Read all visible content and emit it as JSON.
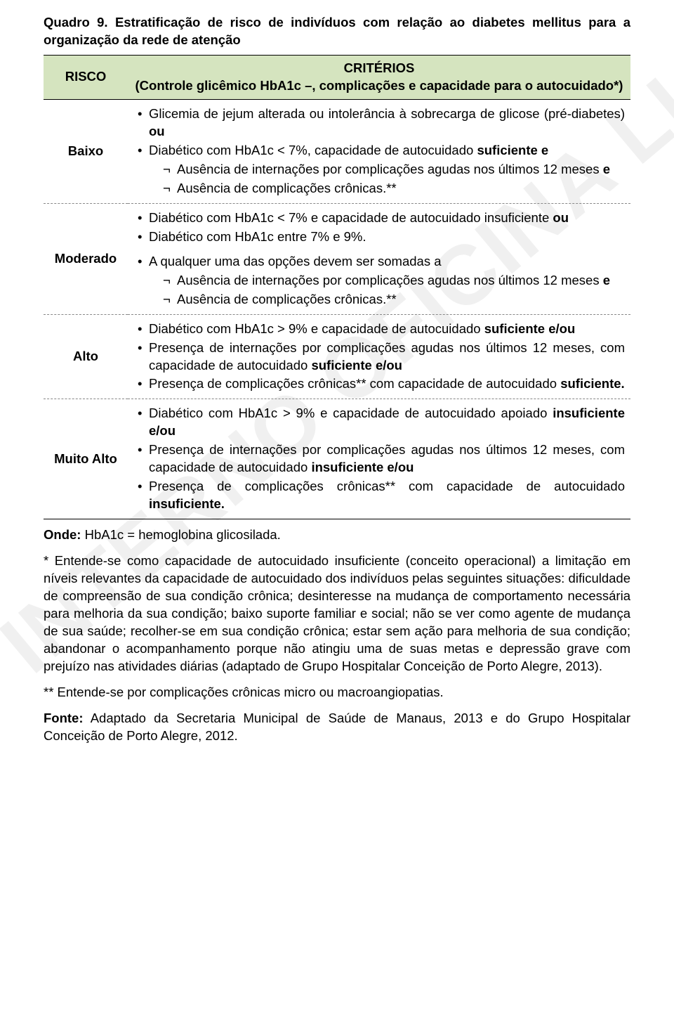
{
  "title_label": "Quadro 9.",
  "title_text": "Estratificação de risco de indivíduos com relação ao diabetes mellitus para a organização da rede de atenção",
  "header": {
    "risk": "RISCO",
    "criteria_line1": "CRITÉRIOS",
    "criteria_line2": "(Controle glicêmico HbA1c –, complicações e capacidade para o autocuidado*)"
  },
  "rows": {
    "baixo": {
      "label": "Baixo",
      "b1a": "Glicemia de jejum alterada ou intolerância à sobrecarga de glicose (pré-diabetes) ",
      "b1b": "ou",
      "b2a": "Diabético com HbA1c < 7%, capacidade de autocuidado ",
      "b2b": "suficiente e",
      "s1a": "Ausência de internações por complicações agudas nos últimos 12 meses ",
      "s1b": "e",
      "s2": "Ausência de complicações crônicas.**"
    },
    "moderado": {
      "label": "Moderado",
      "b1a": "Diabético com HbA1c < 7% e capacidade de autocuidado insuficiente ",
      "b1b": "ou",
      "b2": "Diabético com HbA1c entre 7% e 9%.",
      "b3": "A qualquer uma das opções devem ser somadas a",
      "s1a": "Ausência de internações por complicações agudas nos últimos 12 meses ",
      "s1b": "e",
      "s2": "Ausência de complicações crônicas.**"
    },
    "alto": {
      "label": "Alto",
      "b1a": "Diabético com HbA1c > 9%   e capacidade de autocuidado ",
      "b1b": "suficiente e/ou",
      "b2a": "Presença de internações por complicações agudas nos últimos 12 meses, com capacidade de autocuidado ",
      "b2b": "suficiente e/ou",
      "b3a": "Presença de complicações crônicas** com capacidade de autocuidado ",
      "b3b": "suficiente.",
      "b3c": ""
    },
    "muitoalto": {
      "label": "Muito Alto",
      "b1a": "Diabético com HbA1c > 9% e capacidade de autocuidado apoiado ",
      "b1b": "insuficiente e/ou",
      "b2a": "Presença de internações por complicações agudas nos últimos 12 meses, com capacidade de autocuidado ",
      "b2b": "insuficiente e/ou",
      "b3a": "Presença de complicações crônicas** com capacidade de autocuidado ",
      "b3b": "insuficiente."
    }
  },
  "onde_label": "Onde:",
  "onde_text": " HbA1c = hemoglobina glicosilada.",
  "note1": "* Entende-se como capacidade de autocuidado insuficiente (conceito operacional) a limitação em níveis relevantes da capacidade de autocuidado dos indivíduos pelas seguintes situações: dificuldade de compreensão de sua condição crônica; desinteresse na mudança de comportamento necessária para melhoria da sua condição; baixo suporte familiar e social; não se ver como agente de mudança de sua saúde; recolher-se em sua condição crônica; estar sem ação para melhoria de sua condição; abandonar o acompanhamento porque não atingiu uma de suas metas e depressão grave com prejuízo nas atividades diárias (adaptado de Grupo Hospitalar Conceição de Porto Alegre, 2013).",
  "note2": "** Entende-se por complicações crônicas micro ou macroangiopatias.",
  "fonte_label": "Fonte:",
  "fonte_text": " Adaptado da Secretaria Municipal de Saúde de Manaus, 2013 e do Grupo Hospitalar Conceição de Porto Alegre, 2012.",
  "watermark": "USO INTERNO OFICINA LIACC",
  "colors": {
    "header_bg": "#d5e4bf",
    "text": "#000000",
    "watermark": "rgba(0,0,0,0.06)"
  }
}
